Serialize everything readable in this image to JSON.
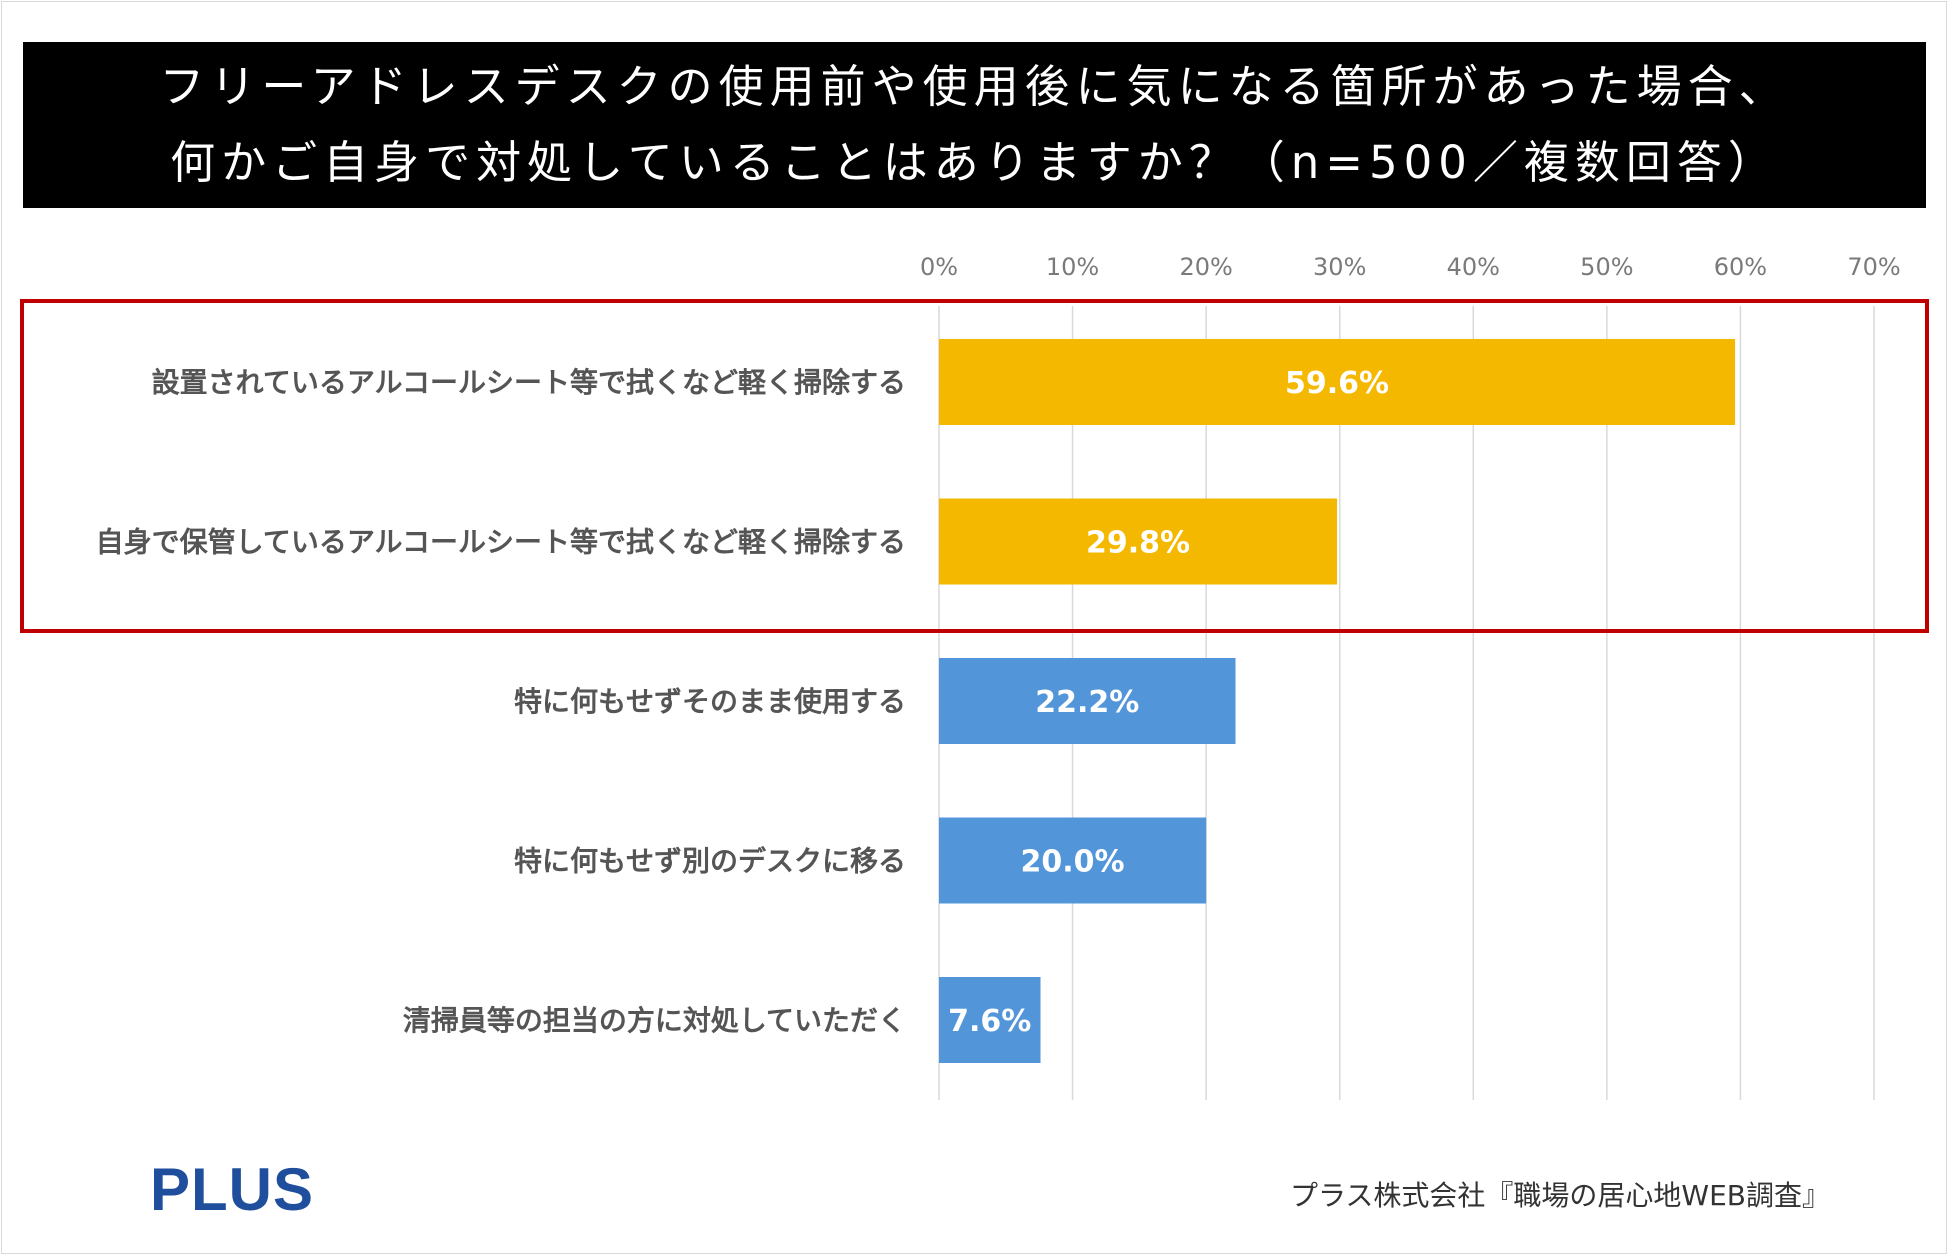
{
  "header": {
    "title_line1": "フリーアドレスデスクの使用前や使用後に気になる箇所があった場合、",
    "title_line2": "何かご自身で対処していることはありますか？（n=500／複数回答）"
  },
  "chart_data": {
    "type": "bar",
    "orientation": "horizontal",
    "categories": [
      "設置されているアルコールシート等で拭くなど軽く掃除する",
      "自身で保管しているアルコールシート等で拭くなど軽く掃除する",
      "特に何もせずそのまま使用する",
      "特に何もせず別のデスクに移る",
      "清掃員等の担当の方に対処していただく"
    ],
    "values": [
      59.6,
      29.8,
      22.2,
      20.0,
      7.6
    ],
    "data_labels": [
      "59.6%",
      "29.8%",
      "22.2%",
      "20.0%",
      "7.6%"
    ],
    "xlim": [
      0,
      70
    ],
    "ticks": [
      0,
      10,
      20,
      30,
      40,
      50,
      60,
      70
    ],
    "tick_labels": [
      "0%",
      "10%",
      "20%",
      "30%",
      "40%",
      "50%",
      "60%",
      "70%"
    ],
    "axis_position": "top",
    "grid": true,
    "highlighted_indices": [
      0,
      1
    ],
    "colors": {
      "highlight_bar": "#f5b800",
      "normal_bar": "#5296d9",
      "highlight_box": "#c00000",
      "gridline": "#d9d9d9"
    }
  },
  "footer": {
    "logo_text": "PLUS",
    "source": "プラス株式会社『職場の居心地WEB調査』"
  }
}
